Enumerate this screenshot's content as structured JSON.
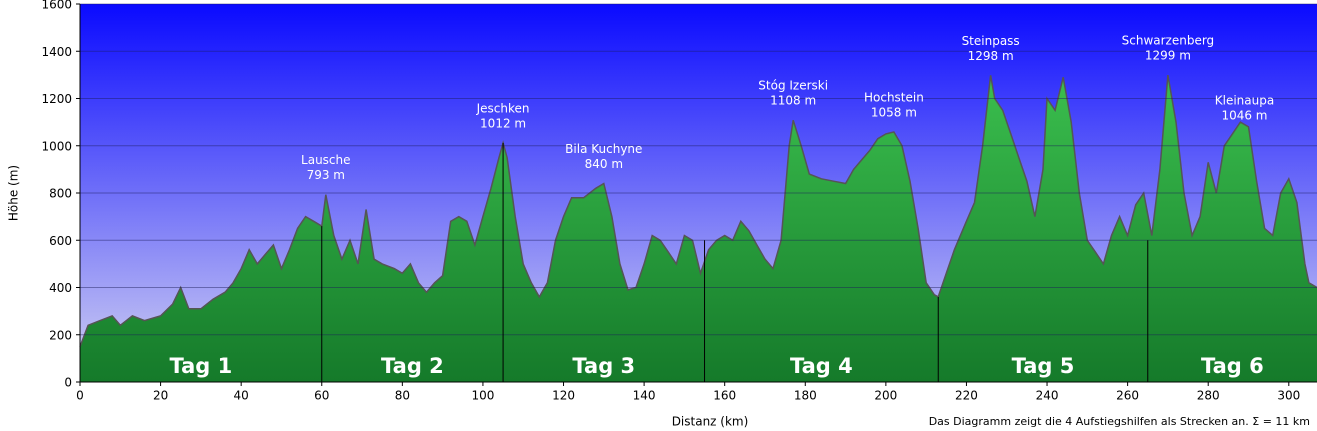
{
  "chart_data": {
    "type": "area",
    "x_label": "Distanz   (km)",
    "y_label": "Höhe (m)",
    "footnote": "Das Diagramm zeigt die 4 Aufstiegshilfen als Strecken an. Σ = 11 km",
    "xlim": [
      0,
      307
    ],
    "ylim": [
      0,
      1600
    ],
    "xticks": [
      0,
      20,
      40,
      60,
      80,
      100,
      120,
      140,
      160,
      180,
      200,
      220,
      240,
      260,
      280,
      300
    ],
    "yticks": [
      0,
      200,
      400,
      600,
      800,
      1000,
      1200,
      1400,
      1600
    ],
    "grid": true,
    "color": "#2aa640",
    "line_color": "#555555",
    "x": [
      0,
      2,
      5,
      8,
      10,
      13,
      16,
      20,
      23,
      25,
      27,
      30,
      33,
      36,
      38,
      40,
      42,
      44,
      46,
      48,
      50,
      52,
      54,
      56,
      58,
      60,
      61,
      63,
      65,
      67,
      69,
      71,
      73,
      75,
      78,
      80,
      82,
      84,
      86,
      88,
      90,
      92,
      94,
      96,
      98,
      100,
      102,
      104,
      105,
      106,
      108,
      110,
      112,
      114,
      116,
      118,
      120,
      122,
      125,
      128,
      130,
      132,
      134,
      136,
      138,
      140,
      142,
      144,
      146,
      148,
      150,
      152,
      154,
      156,
      158,
      160,
      162,
      164,
      166,
      168,
      170,
      172,
      174,
      176,
      177,
      179,
      181,
      184,
      187,
      190,
      192,
      194,
      196,
      198,
      200,
      202,
      204,
      206,
      208,
      210,
      212,
      213,
      215,
      217,
      220,
      222,
      224,
      226,
      227,
      229,
      231,
      233,
      235,
      237,
      239,
      240,
      242,
      244,
      246,
      248,
      250,
      252,
      254,
      256,
      258,
      260,
      262,
      264,
      266,
      268,
      270,
      272,
      274,
      276,
      278,
      280,
      282,
      284,
      286,
      288,
      290,
      292,
      294,
      296,
      298,
      300,
      302,
      304,
      305,
      307
    ],
    "values": [
      150,
      240,
      260,
      280,
      240,
      280,
      260,
      280,
      330,
      400,
      310,
      310,
      350,
      380,
      420,
      480,
      560,
      500,
      540,
      580,
      480,
      560,
      650,
      700,
      680,
      660,
      793,
      620,
      520,
      600,
      500,
      730,
      520,
      500,
      480,
      460,
      500,
      420,
      380,
      420,
      450,
      680,
      700,
      680,
      580,
      700,
      820,
      950,
      1012,
      950,
      700,
      500,
      420,
      360,
      420,
      600,
      700,
      780,
      780,
      820,
      840,
      700,
      500,
      390,
      400,
      500,
      620,
      600,
      550,
      500,
      620,
      600,
      460,
      560,
      600,
      620,
      600,
      680,
      640,
      580,
      520,
      480,
      600,
      1000,
      1108,
      1000,
      880,
      860,
      850,
      840,
      900,
      940,
      980,
      1030,
      1050,
      1058,
      1000,
      850,
      650,
      420,
      370,
      360,
      460,
      560,
      680,
      760,
      1000,
      1298,
      1200,
      1150,
      1050,
      950,
      850,
      700,
      900,
      1200,
      1150,
      1290,
      1100,
      800,
      600,
      550,
      500,
      620,
      700,
      620,
      750,
      800,
      620,
      900,
      1299,
      1100,
      800,
      620,
      700,
      930,
      800,
      1000,
      1050,
      1100,
      1080,
      850,
      650,
      620,
      800,
      860,
      760,
      500,
      420,
      400
    ],
    "annotations": [
      {
        "name": "Lausche",
        "label": "793 m",
        "x": 61,
        "value": 793
      },
      {
        "name": "Jeschken",
        "label": "1012 m",
        "x": 105,
        "value": 1012
      },
      {
        "name": "Bila Kuchyne",
        "label": "840 m",
        "x": 130,
        "value": 840
      },
      {
        "name": "Stóg Izerski",
        "label": "1108 m",
        "x": 177,
        "value": 1108
      },
      {
        "name": "Hochstein",
        "label": "1058 m",
        "x": 202,
        "value": 1058
      },
      {
        "name": "Steinpass",
        "label": "1298 m",
        "x": 226,
        "value": 1298
      },
      {
        "name": "Schwarzenberg",
        "label": "1299 m",
        "x": 270,
        "value": 1299
      },
      {
        "name": "Kleinaupa",
        "label": "1046 m",
        "x": 289,
        "value": 1046
      }
    ],
    "days": [
      {
        "label": "Tag 1",
        "start": 0,
        "end": 60
      },
      {
        "label": "Tag 2",
        "start": 60,
        "end": 105
      },
      {
        "label": "Tag 3",
        "start": 105,
        "end": 155
      },
      {
        "label": "Tag 4",
        "start": 155,
        "end": 213
      },
      {
        "label": "Tag 5",
        "start": 213,
        "end": 265
      },
      {
        "label": "Tag 6",
        "start": 265,
        "end": 307
      }
    ]
  }
}
